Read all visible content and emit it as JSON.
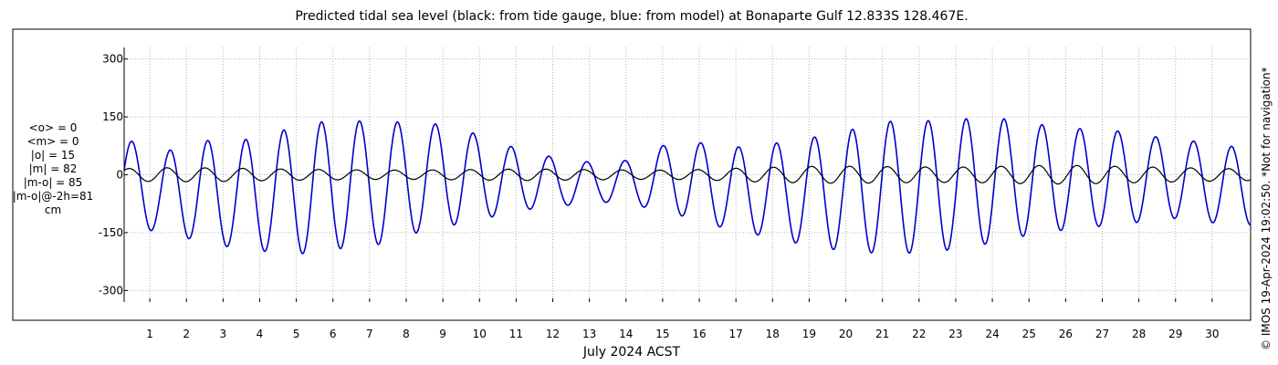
{
  "chart_data": {
    "type": "line",
    "title": "Predicted tidal sea level (black: from tide gauge, blue: from model) at Bonaparte Gulf 12.833S 128.467E.",
    "xlabel": "July 2024 ACST",
    "ylabel": "",
    "x_ticks": [
      "1",
      "2",
      "3",
      "4",
      "5",
      "6",
      "7",
      "8",
      "9",
      "10",
      "11",
      "12",
      "13",
      "14",
      "15",
      "16",
      "17",
      "18",
      "19",
      "20",
      "21",
      "22",
      "23",
      "24",
      "25",
      "26",
      "27",
      "28",
      "29",
      "30"
    ],
    "xlim": [
      0.3,
      31.05
    ],
    "y_ticks": [
      "300",
      "150",
      "0",
      "-150",
      "-300"
    ],
    "ylim": [
      -330,
      330
    ],
    "grid": true,
    "units": "cm",
    "stats": [
      "<o> = 0",
      "<m> = 0",
      "|o| = 15",
      "|m| = 82",
      "|m-o| = 85",
      "|m-o|@-2h=81",
      "cm"
    ],
    "series": [
      {
        "label": "black",
        "color": "#000000",
        "x": [
          0.3,
          1.3,
          2.3,
          3.3,
          4.3,
          5.3,
          6.3,
          7.3,
          8.3,
          9.3,
          10.3,
          11.3,
          12.3,
          13.3,
          14.3,
          15.3,
          16.3,
          17.3,
          18.3,
          19.3,
          20.3,
          21.3,
          22.3,
          23.3,
          24.3,
          25.3,
          26.3,
          27.3,
          28.3,
          29.3,
          30.3,
          31.05
        ],
        "amplitude_cm": [
          16,
          18,
          18,
          17,
          15,
          14,
          13,
          12,
          12,
          13,
          14,
          15,
          14,
          13,
          12,
          12,
          14,
          18,
          20,
          22,
          22,
          21,
          20,
          20,
          22,
          24,
          24,
          22,
          20,
          18,
          16,
          15
        ]
      },
      {
        "label": "blue",
        "color": "#0000cc",
        "x": [
          0.3,
          1.3,
          2.3,
          3.3,
          4.3,
          5.3,
          6.3,
          7.3,
          8.3,
          9.3,
          10.3,
          11.3,
          12.3,
          13.3,
          14.3,
          15.3,
          16.3,
          17.3,
          18.3,
          19.3,
          20.3,
          21.3,
          22.3,
          23.3,
          24.3,
          25.3,
          26.3,
          27.3,
          28.3,
          29.3,
          30.3,
          31.05
        ],
        "high_water_cm": [
          95,
          55,
          90,
          85,
          105,
          135,
          140,
          138,
          135,
          128,
          90,
          60,
          40,
          30,
          40,
          90,
          80,
          70,
          85,
          100,
          120,
          140,
          140,
          145,
          145,
          130,
          120,
          115,
          100,
          90,
          75,
          70
        ],
        "low_water_cm": [
          -130,
          -150,
          -170,
          -190,
          -200,
          -205,
          -190,
          -180,
          -150,
          -130,
          -110,
          -90,
          -80,
          -70,
          -80,
          -100,
          -130,
          -150,
          -170,
          -190,
          -200,
          -205,
          -200,
          -190,
          -170,
          -150,
          -140,
          -130,
          -120,
          -110,
          -130,
          -130
        ]
      }
    ]
  }
}
